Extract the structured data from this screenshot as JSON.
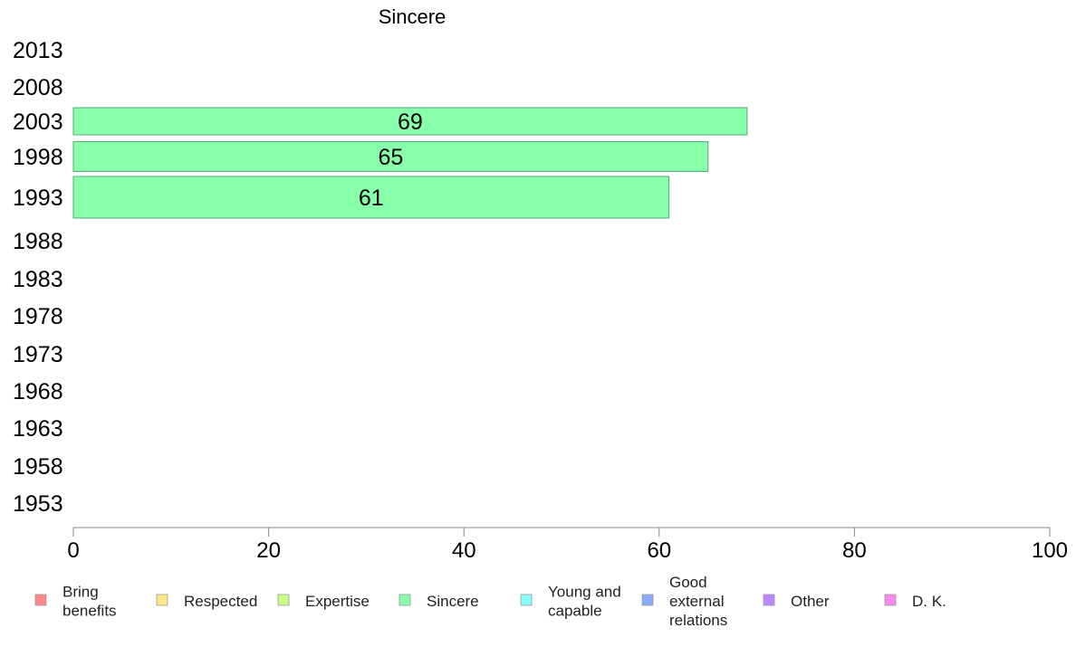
{
  "chart_data": {
    "type": "bar",
    "orientation": "horizontal",
    "title": "Sincere",
    "categories": [
      "2013",
      "2008",
      "2003",
      "1998",
      "1993",
      "1988",
      "1983",
      "1978",
      "1973",
      "1968",
      "1963",
      "1958",
      "1953"
    ],
    "series": [
      {
        "name": "Sincere",
        "color": "#88ffaa",
        "values": [
          null,
          null,
          69,
          65,
          61,
          null,
          null,
          null,
          null,
          null,
          null,
          null,
          null
        ],
        "labels": [
          "",
          "",
          "69",
          "65",
          "61",
          "",
          "",
          "",
          "",
          "",
          "",
          "",
          ""
        ]
      }
    ],
    "xlim": [
      0,
      100
    ],
    "xticks": [
      "0",
      "20",
      "40",
      "60",
      "80",
      "100"
    ],
    "grid": false,
    "legend": {
      "placement": "bottom",
      "entries": [
        {
          "label": "Bring\nbenefits",
          "color": "#ff8888"
        },
        {
          "label": "Respected",
          "color": "#ffe888"
        },
        {
          "label": "Expertise",
          "color": "#ccff88"
        },
        {
          "label": "Sincere",
          "color": "#88ffaa"
        },
        {
          "label": "Young and\ncapable",
          "color": "#88ffff"
        },
        {
          "label": "Good\nexternal\nrelations",
          "color": "#88aaff"
        },
        {
          "label": "Other",
          "color": "#bb88ff"
        },
        {
          "label": "D. K.",
          "color": "#ff88ee"
        }
      ]
    }
  }
}
